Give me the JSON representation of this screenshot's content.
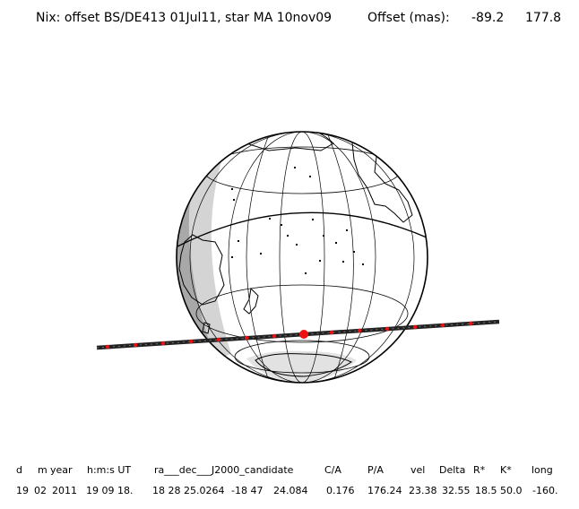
{
  "title": {
    "label": "Nix: offset BS/DE413 01Jul11, star MA 10nov09",
    "offset_label": "Offset (mas):",
    "offset_x": "-89.2",
    "offset_y": "177.8"
  },
  "table": {
    "headers": [
      "d",
      "m",
      "year",
      "h:m:s UT",
      "ra___dec___J2000_candidate",
      "C/A",
      "P/A",
      "vel",
      "Delta",
      "R*",
      "K*",
      "long"
    ],
    "values": [
      "19",
      "02",
      "2011",
      "19 09 18.",
      "18 28 25.0264",
      "-18 47",
      "24.084",
      "0.176",
      "176.24",
      "23.38",
      "32.55",
      "18.5",
      "50.0",
      "-160."
    ]
  },
  "colors": {
    "night": "#a8a8a8",
    "twilight": "#d4d4d4",
    "track": "#222222",
    "track_marker": "#ee1111"
  }
}
